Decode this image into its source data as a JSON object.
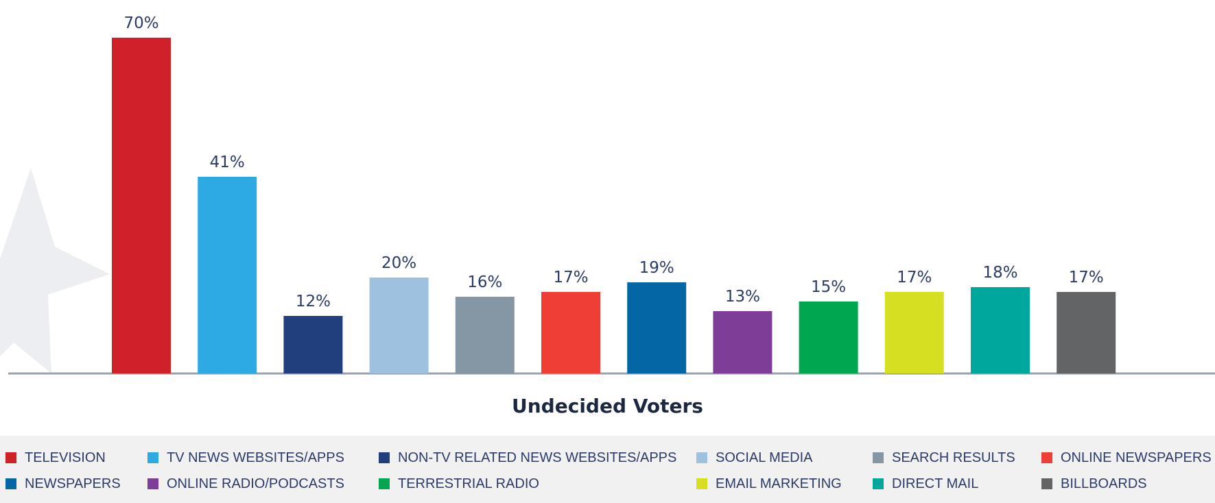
{
  "chart_data": {
    "type": "bar",
    "xlabel": "Undecided Voters",
    "ylabel": "",
    "ylim": [
      0,
      72
    ],
    "grid": false,
    "legend_position": "bottom",
    "categories": [
      "TELEVISION",
      "TV NEWS WEBSITES/APPS",
      "NON-TV RELATED NEWS WEBSITES/APPS",
      "SOCIAL MEDIA",
      "SEARCH RESULTS",
      "ONLINE NEWSPAPERS",
      "NEWSPAPERS",
      "ONLINE RADIO/PODCASTS",
      "TERRESTRIAL RADIO",
      "EMAIL MARKETING",
      "DIRECT MAIL",
      "BILLBOARDS"
    ],
    "values": [
      70,
      41,
      12,
      20,
      16,
      17,
      19,
      13,
      15,
      17,
      18,
      17
    ],
    "value_labels": [
      "70%",
      "41%",
      "12%",
      "20%",
      "16%",
      "17%",
      "19%",
      "13%",
      "15%",
      "17%",
      "18%",
      "17%"
    ],
    "colors": [
      "#d0202a",
      "#2eaae2",
      "#223f7d",
      "#9dc1de",
      "#8596a4",
      "#ee3e36",
      "#0566a5",
      "#7e3e98",
      "#00a650",
      "#d7df23",
      "#00a79d",
      "#636466"
    ],
    "legend_rows": [
      [
        0,
        1,
        2,
        3,
        4,
        5
      ],
      [
        6,
        7,
        8,
        9,
        10,
        11
      ]
    ]
  }
}
